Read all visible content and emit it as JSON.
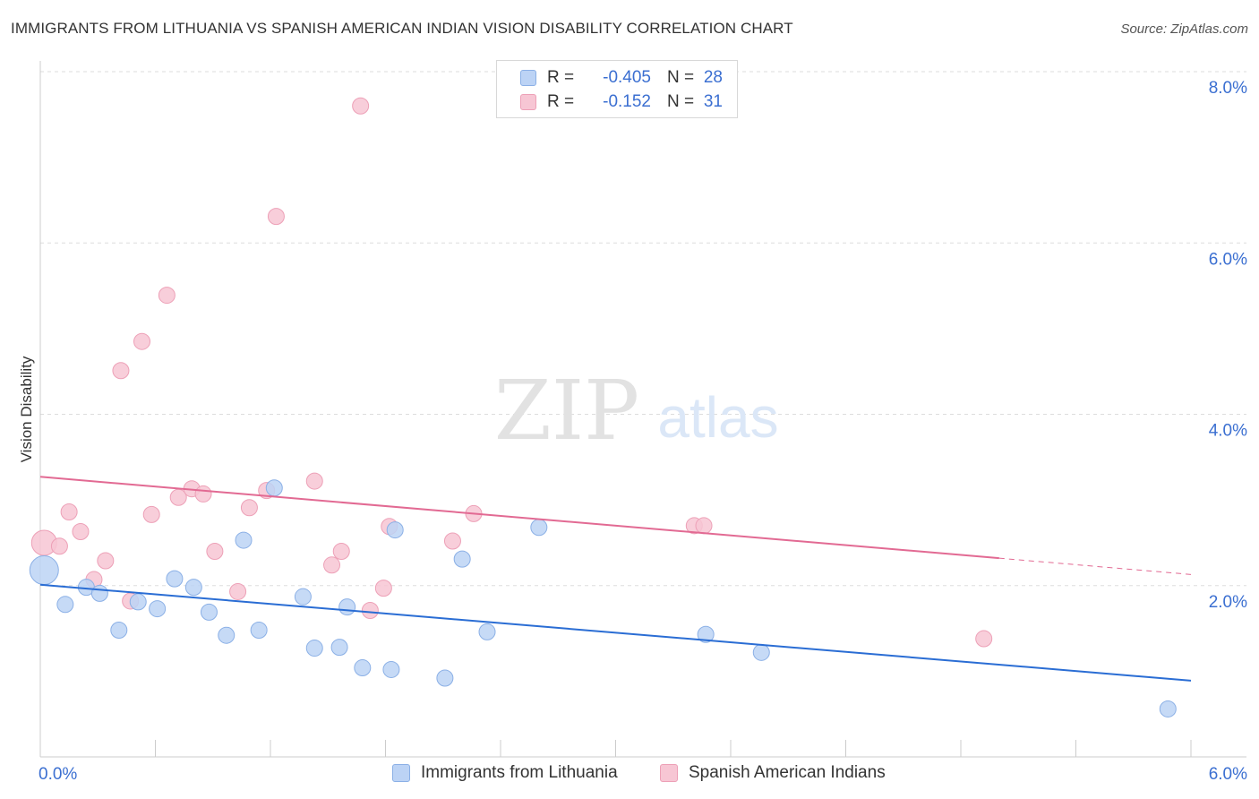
{
  "title": "IMMIGRANTS FROM LITHUANIA VS SPANISH AMERICAN INDIAN VISION DISABILITY CORRELATION CHART",
  "source": "Source: ZipAtlas.com",
  "watermark": {
    "zip": "ZIP",
    "atlas": "atlas"
  },
  "legend": {
    "rows": [
      {
        "r_label": "R =",
        "r_value": "-0.405",
        "n_label": "N =",
        "n_value": "28"
      },
      {
        "r_label": "R =",
        "r_value": "-0.152",
        "n_label": "N =",
        "n_value": "31"
      }
    ]
  },
  "colors": {
    "blue_fill": "#bcd3f5",
    "blue_stroke": "#8bb0e6",
    "blue_line": "#2a6dd4",
    "pink_fill": "#f7c6d4",
    "pink_stroke": "#eda0b7",
    "pink_line": "#e26a93",
    "tick_label": "#3b6fd1",
    "grid": "#dddddd"
  },
  "chart_data": {
    "type": "scatter",
    "title": "IMMIGRANTS FROM LITHUANIA VS SPANISH AMERICAN INDIAN VISION DISABILITY CORRELATION CHART",
    "xlabel": "",
    "ylabel": "Vision Disability",
    "xlim": [
      0,
      6
    ],
    "ylim": [
      0,
      8
    ],
    "x_tick_labels": [
      {
        "value": 0,
        "label": "0.0%"
      },
      {
        "value": 6,
        "label": "6.0%"
      }
    ],
    "y_tick_labels": [
      {
        "value": 2,
        "label": "2.0%"
      },
      {
        "value": 4,
        "label": "4.0%"
      },
      {
        "value": 6,
        "label": "6.0%"
      },
      {
        "value": 8,
        "label": "8.0%"
      }
    ],
    "series": [
      {
        "name": "Immigrants from Lithuania",
        "color": "blue",
        "points": [
          [
            0.02,
            2.18
          ],
          [
            0.13,
            1.78
          ],
          [
            0.24,
            1.98
          ],
          [
            0.31,
            1.91
          ],
          [
            0.41,
            1.48
          ],
          [
            0.51,
            1.81
          ],
          [
            0.61,
            1.73
          ],
          [
            0.7,
            2.08
          ],
          [
            0.8,
            1.98
          ],
          [
            0.88,
            1.69
          ],
          [
            0.97,
            1.42
          ],
          [
            1.06,
            2.53
          ],
          [
            1.14,
            1.48
          ],
          [
            1.22,
            3.14
          ],
          [
            1.37,
            1.87
          ],
          [
            1.43,
            1.27
          ],
          [
            1.56,
            1.28
          ],
          [
            1.6,
            1.75
          ],
          [
            1.68,
            1.04
          ],
          [
            1.83,
            1.02
          ],
          [
            1.85,
            2.65
          ],
          [
            2.11,
            0.92
          ],
          [
            2.2,
            2.31
          ],
          [
            2.33,
            1.46
          ],
          [
            2.6,
            2.68
          ],
          [
            3.47,
            1.43
          ],
          [
            3.76,
            1.22
          ],
          [
            5.88,
            0.56
          ]
        ],
        "point_sizes": [
          16,
          9,
          9,
          9,
          9,
          9,
          9,
          9,
          9,
          9,
          9,
          9,
          9,
          9,
          9,
          9,
          9,
          9,
          9,
          9,
          9,
          9,
          9,
          9,
          9,
          9,
          9,
          9
        ],
        "trend": {
          "x": [
            0,
            6
          ],
          "y": [
            2.01,
            0.89
          ]
        }
      },
      {
        "name": "Spanish American Indians",
        "color": "pink",
        "points": [
          [
            0.02,
            2.5
          ],
          [
            0.1,
            2.46
          ],
          [
            0.15,
            2.86
          ],
          [
            0.21,
            2.63
          ],
          [
            0.28,
            2.07
          ],
          [
            0.34,
            2.29
          ],
          [
            0.42,
            4.51
          ],
          [
            0.47,
            1.82
          ],
          [
            0.53,
            4.85
          ],
          [
            0.58,
            2.83
          ],
          [
            0.66,
            5.39
          ],
          [
            0.72,
            3.03
          ],
          [
            0.79,
            3.13
          ],
          [
            0.85,
            3.07
          ],
          [
            0.91,
            2.4
          ],
          [
            1.03,
            1.93
          ],
          [
            1.09,
            2.91
          ],
          [
            1.18,
            3.11
          ],
          [
            1.23,
            6.31
          ],
          [
            1.43,
            3.22
          ],
          [
            1.52,
            2.24
          ],
          [
            1.57,
            2.4
          ],
          [
            1.67,
            7.6
          ],
          [
            1.72,
            1.71
          ],
          [
            1.79,
            1.97
          ],
          [
            1.82,
            2.69
          ],
          [
            2.15,
            2.52
          ],
          [
            2.26,
            2.84
          ],
          [
            3.41,
            2.7
          ],
          [
            3.46,
            2.7
          ],
          [
            4.92,
            1.38
          ]
        ],
        "point_sizes": [
          14,
          9,
          9,
          9,
          9,
          9,
          9,
          9,
          9,
          9,
          9,
          9,
          9,
          9,
          9,
          9,
          9,
          9,
          9,
          9,
          9,
          9,
          9,
          9,
          9,
          9,
          9,
          9,
          9,
          9,
          9
        ],
        "trend": {
          "x": [
            0,
            6
          ],
          "y": [
            3.27,
            2.13
          ],
          "solid_until_x": 5.0
        }
      }
    ]
  },
  "bottom_legend": [
    {
      "label": "Immigrants from Lithuania"
    },
    {
      "label": "Spanish American Indians"
    }
  ]
}
